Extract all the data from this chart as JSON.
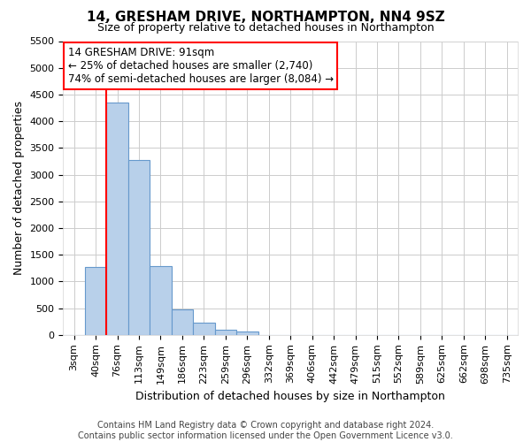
{
  "title": "14, GRESHAM DRIVE, NORTHAMPTON, NN4 9SZ",
  "subtitle": "Size of property relative to detached houses in Northampton",
  "xlabel": "Distribution of detached houses by size in Northampton",
  "ylabel": "Number of detached properties",
  "footer_line1": "Contains HM Land Registry data © Crown copyright and database right 2024.",
  "footer_line2": "Contains public sector information licensed under the Open Government Licence v3.0.",
  "bar_labels": [
    "3sqm",
    "40sqm",
    "76sqm",
    "113sqm",
    "149sqm",
    "186sqm",
    "223sqm",
    "259sqm",
    "296sqm",
    "332sqm",
    "369sqm",
    "406sqm",
    "442sqm",
    "479sqm",
    "515sqm",
    "552sqm",
    "589sqm",
    "625sqm",
    "662sqm",
    "698sqm",
    "735sqm"
  ],
  "bar_values": [
    0,
    1270,
    4350,
    3280,
    1280,
    475,
    230,
    100,
    70,
    0,
    0,
    0,
    0,
    0,
    0,
    0,
    0,
    0,
    0,
    0,
    0
  ],
  "bar_color": "#b8d0ea",
  "bar_edge_color": "#6699cc",
  "vline_x_index": 2,
  "vline_color": "red",
  "ylim": [
    0,
    5500
  ],
  "yticks": [
    0,
    500,
    1000,
    1500,
    2000,
    2500,
    3000,
    3500,
    4000,
    4500,
    5000,
    5500
  ],
  "annotation_line1": "14 GRESHAM DRIVE: 91sqm",
  "annotation_line2": "← 25% of detached houses are smaller (2,740)",
  "annotation_line3": "74% of semi-detached houses are larger (8,084) →",
  "annotation_box_color": "white",
  "annotation_box_edge_color": "red",
  "grid_color": "#cccccc",
  "background_color": "white",
  "title_fontsize": 11,
  "subtitle_fontsize": 9,
  "ylabel_fontsize": 9,
  "xlabel_fontsize": 9,
  "tick_fontsize": 8,
  "footer_fontsize": 7
}
